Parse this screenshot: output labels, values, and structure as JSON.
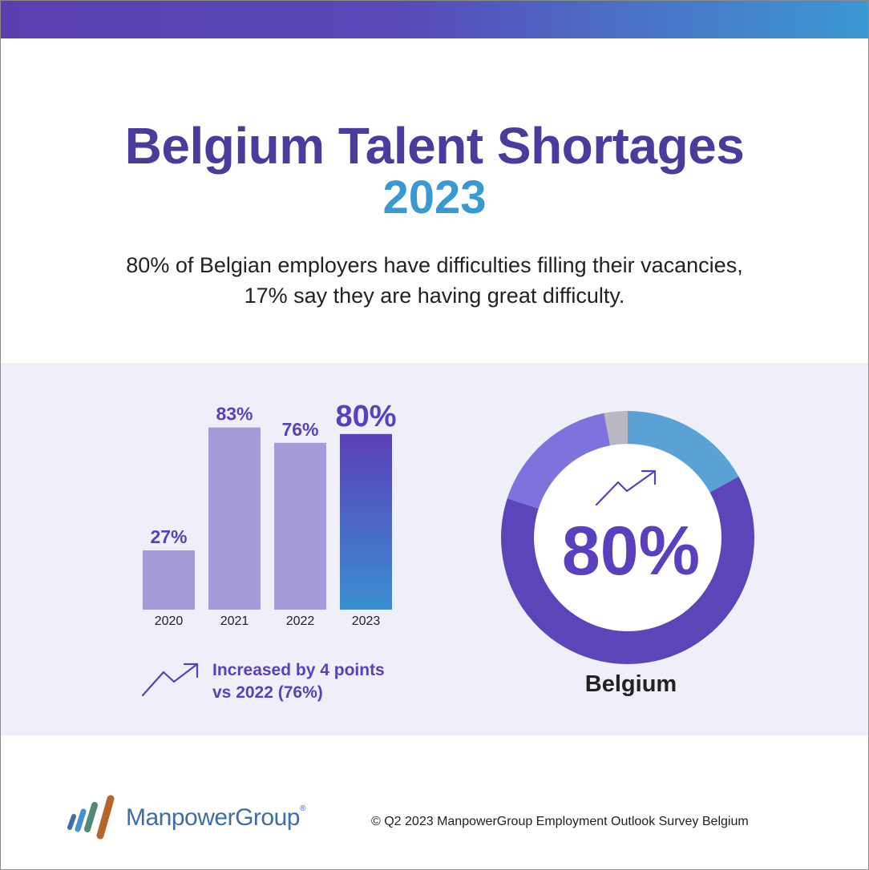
{
  "header": {
    "title": "Belgium Talent Shortages",
    "year": "2023",
    "subtitle_line1": "80% of Belgian employers have difficulties filling their vacancies,",
    "subtitle_line2": "17% say they are having great difficulty."
  },
  "colors": {
    "accent_purple": "#4c3a9c",
    "accent_blue": "#3a98d3",
    "bar_past": "#a59bd9",
    "bar_current_top": "#5b3fb8",
    "bar_current_bottom": "#3a8ed0",
    "donut_main": "#5b45b8",
    "donut_lilac": "#7e72dc",
    "donut_gray": "#b8b7c2",
    "donut_blue": "#5aa2d6"
  },
  "chart_data": [
    {
      "type": "bar",
      "categories": [
        "2020",
        "2021",
        "2022",
        "2023"
      ],
      "values": [
        27,
        83,
        76,
        80
      ],
      "value_labels": [
        "27%",
        "83%",
        "76%",
        "80%"
      ],
      "highlight_index": 3,
      "ylim": [
        0,
        100
      ],
      "annotation": {
        "line1": "Increased by 4 points",
        "line2": "vs 2022 (76%)",
        "icon": "trend-up-icon"
      }
    },
    {
      "type": "pie",
      "donut": true,
      "slices": [
        {
          "value": 17,
          "color": "#5aa2d6"
        },
        {
          "value": 63,
          "color": "#5b45b8"
        },
        {
          "value": 17,
          "color": "#7e72dc"
        },
        {
          "value": 3,
          "color": "#b8b7c2"
        }
      ],
      "center_label": "80%",
      "label": "Belgium",
      "icon": "trend-up-icon"
    }
  ],
  "footer": {
    "brand": "ManpowerGroup",
    "registered": "®",
    "copyright": "© Q2 2023 ManpowerGroup Employment Outlook Survey Belgium"
  }
}
